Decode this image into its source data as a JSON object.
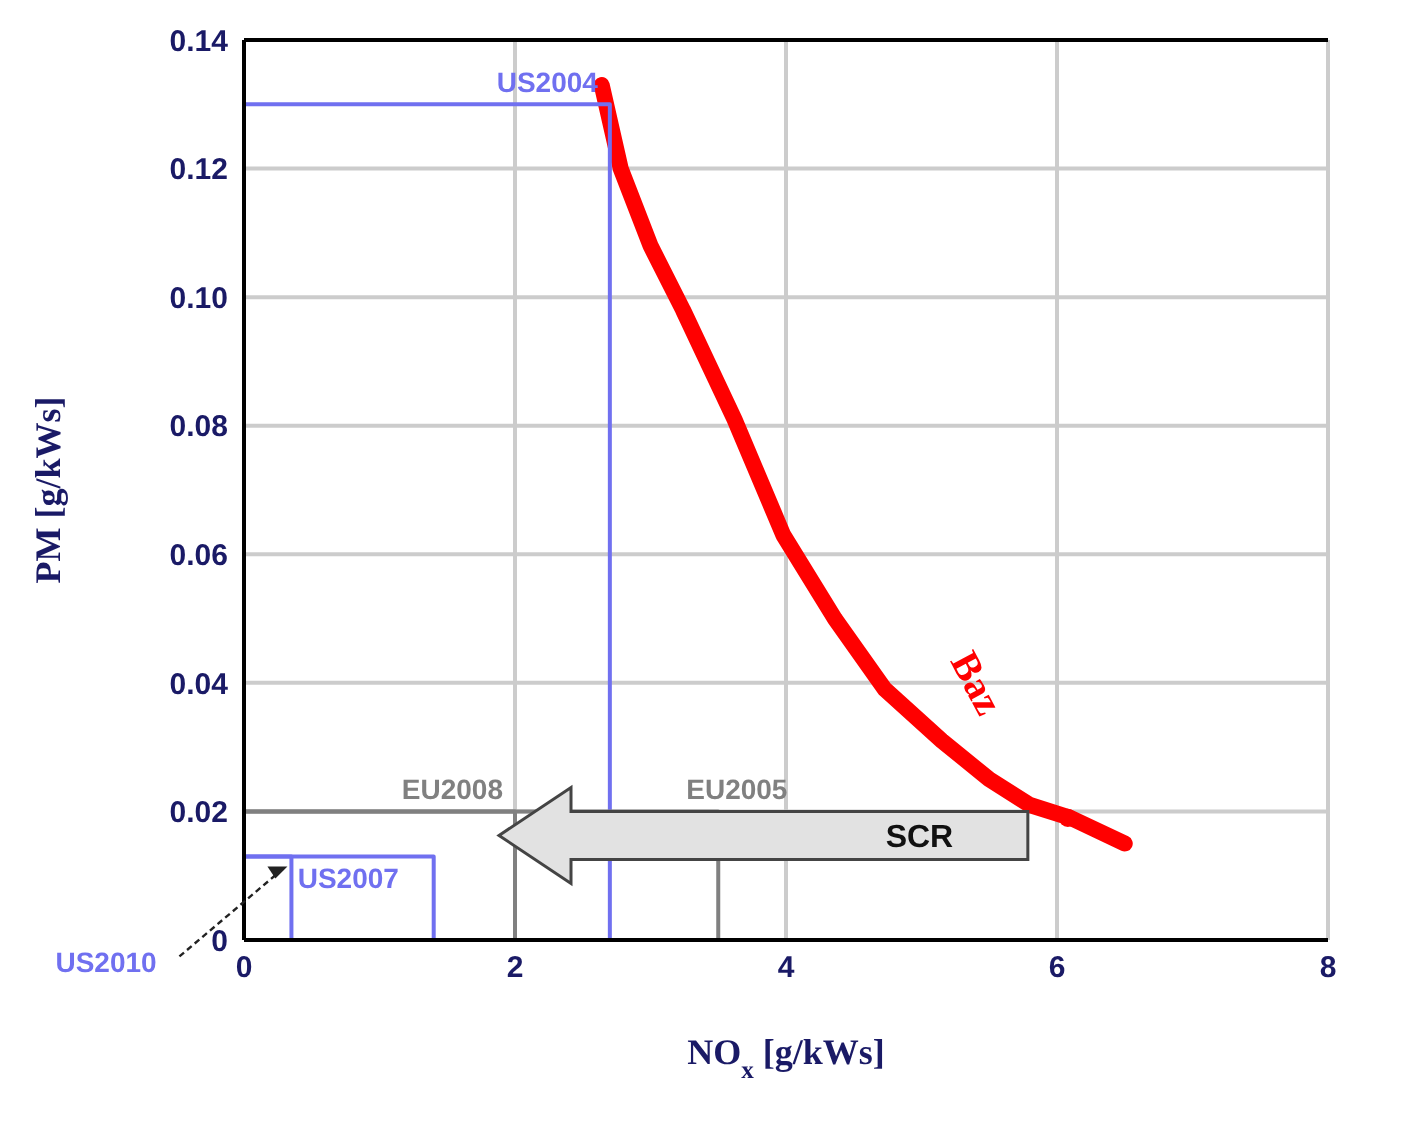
{
  "chart_data": {
    "type": "line",
    "xlabel": "NO$_{x}$ [g/kWs]",
    "ylabel": "PM [g/kWs]",
    "xlim": [
      0,
      8
    ],
    "xticks": [
      0,
      2,
      4,
      6,
      8
    ],
    "ylim": [
      0,
      0.14
    ],
    "yticks": [
      0,
      0.02,
      0.04,
      0.06,
      0.08,
      {
        "value": 0.1,
        "label": "0.10"
      },
      0.12,
      0.14
    ],
    "grid": true,
    "marker": "none",
    "annotations": [
      "SCR"
    ],
    "series": [
      {
        "name": "US2004",
        "color": "#7070f0",
        "x": [
          0,
          2.7,
          2.7
        ],
        "values": [
          0.13,
          0.13,
          0
        ]
      },
      {
        "name": "EU2005",
        "color": "#808080",
        "x": [
          0,
          3.5,
          3.5
        ],
        "values": [
          0.02,
          0.02,
          0
        ]
      },
      {
        "name": "EU2008",
        "color": "#808080",
        "x": [
          0,
          2,
          2
        ],
        "values": [
          0.02,
          0.02,
          0
        ]
      },
      {
        "name": "US2007",
        "color": "#7070f0",
        "x": [
          0,
          1.4,
          1.4
        ],
        "values": [
          0.013,
          0.013,
          0
        ]
      },
      {
        "name": "US2010",
        "color": "#7070f0",
        "x": [
          0,
          0.35,
          0.35
        ],
        "values": [
          0.013,
          0.013,
          0
        ]
      },
      {
        "name": "Baz",
        "color": "#ff0000",
        "x": [
          2.64,
          2.78,
          3.0,
          3.24,
          3.62,
          3.98,
          4.36,
          4.73,
          5.15,
          5.5,
          5.8,
          6.1,
          6.5
        ],
        "values": [
          0.133,
          0.12,
          0.108,
          0.098,
          0.081,
          0.063,
          0.05,
          0.039,
          0.031,
          0.025,
          0.021,
          0.019,
          0.015
        ]
      },
      {
        "type": "scatter",
        "marker": "circle",
        "color": "#ff0000",
        "x": [
          6.08
        ],
        "values": [
          0.019
        ]
      }
    ]
  }
}
